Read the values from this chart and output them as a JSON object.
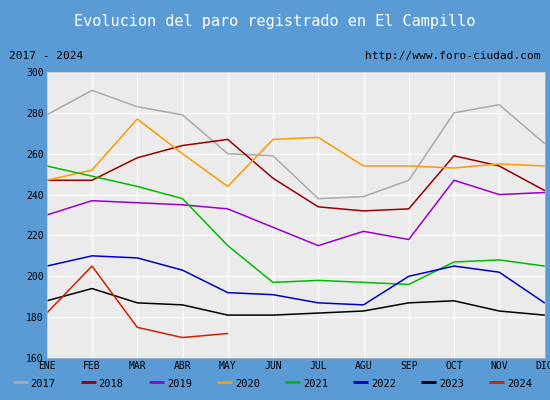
{
  "title": "Evolucion del paro registrado en El Campillo",
  "subtitle_left": "2017 - 2024",
  "subtitle_right": "http://www.foro-ciudad.com",
  "xlabel_months": [
    "ENE",
    "FEB",
    "MAR",
    "ABR",
    "MAY",
    "JUN",
    "JUL",
    "AGU",
    "SEP",
    "OCT",
    "NOV",
    "DIC"
  ],
  "ylim": [
    160,
    300
  ],
  "yticks": [
    160,
    180,
    200,
    220,
    240,
    260,
    280,
    300
  ],
  "series": {
    "2017": {
      "color": "#aaaaaa",
      "values": [
        279,
        291,
        283,
        279,
        260,
        259,
        238,
        239,
        247,
        280,
        284,
        265
      ]
    },
    "2018": {
      "color": "#990000",
      "values": [
        247,
        247,
        258,
        264,
        267,
        248,
        234,
        232,
        233,
        259,
        254,
        242
      ]
    },
    "2019": {
      "color": "#9900cc",
      "values": [
        230,
        237,
        236,
        235,
        233,
        224,
        215,
        222,
        218,
        247,
        240,
        241
      ]
    },
    "2020": {
      "color": "#ff9900",
      "values": [
        247,
        252,
        277,
        260,
        244,
        267,
        268,
        254,
        254,
        253,
        255,
        254
      ]
    },
    "2021": {
      "color": "#00bb00",
      "values": [
        254,
        249,
        244,
        238,
        215,
        197,
        198,
        197,
        196,
        207,
        208,
        205
      ]
    },
    "2022": {
      "color": "#0000cc",
      "values": [
        205,
        210,
        209,
        203,
        192,
        191,
        187,
        186,
        200,
        205,
        202,
        187
      ]
    },
    "2023": {
      "color": "#000000",
      "values": [
        188,
        194,
        187,
        186,
        181,
        181,
        182,
        183,
        187,
        188,
        183,
        181
      ]
    },
    "2024": {
      "color": "#cc2200",
      "values": [
        182,
        205,
        175,
        170,
        172,
        null,
        null,
        null,
        null,
        null,
        null,
        null
      ]
    }
  },
  "title_bg_color": "#5b9bd5",
  "title_text_color": "#ffffff",
  "plot_bg_color": "#ebebeb",
  "border_color": "#5b9bd5",
  "grid_color": "#ffffff",
  "title_fontsize": 11,
  "tick_fontsize": 7,
  "legend_fontsize": 7.5
}
